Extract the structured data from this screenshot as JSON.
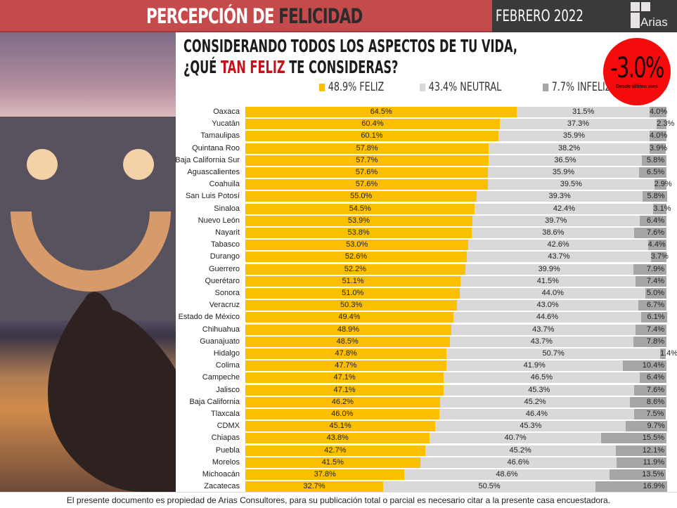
{
  "header": {
    "title_part1": "PERCEPCIÓN DE ",
    "title_part2": "FELICIDAD",
    "date": "FEBRERO 2022",
    "logo_text": "Arias"
  },
  "question": {
    "line1": "CONSIDERANDO TODOS LOS ASPECTOS DE TU VIDA,",
    "line2_pre": "¿QUÉ ",
    "line2_highlight": "TAN FELIZ",
    "line2_post": " TE CONSIDERAS?"
  },
  "badge": {
    "value": "-3.0%",
    "subtitle": "Desde último mes",
    "color": "#f50b0b"
  },
  "footer": "El presente documento es propiedad de Arias Consultores, para su publicación total o parcial es necesario citar a la presente casa encuestadora.",
  "chart_data": {
    "type": "bar",
    "stacked": true,
    "orientation": "horizontal",
    "xlim": [
      0,
      100
    ],
    "legend": [
      "48.9% FELIZ",
      "43.4% NEUTRAL",
      "7.7% INFELIZ"
    ],
    "legend_position": "top-right",
    "colors": [
      "#fcbf00",
      "#d9d9d9",
      "#a6a6a6"
    ],
    "categories": [
      "Oaxaca",
      "Yucatán",
      "Tamaulipas",
      "Quintana Roo",
      "Baja California Sur",
      "Aguascalientes",
      "Coahuila",
      "San Luis Potosí",
      "Sinaloa",
      "Nuevo León",
      "Nayarit",
      "Tabasco",
      "Durango",
      "Guerrero",
      "Querétaro",
      "Sonora",
      "Veracruz",
      "Estado de México",
      "Chihuahua",
      "Guanajuato",
      "Hidalgo",
      "Colima",
      "Campeche",
      "Jalisco",
      "Baja California",
      "Tlaxcala",
      "CDMX",
      "Chiapas",
      "Puebla",
      "Morelos",
      "Michoacán",
      "Zacatecas"
    ],
    "series": [
      {
        "name": "FELIZ",
        "values": [
          64.5,
          60.4,
          60.1,
          57.8,
          57.7,
          57.6,
          57.6,
          55.0,
          54.5,
          53.9,
          53.8,
          53.0,
          52.6,
          52.2,
          51.1,
          51.0,
          50.3,
          49.4,
          48.9,
          48.5,
          47.8,
          47.7,
          47.1,
          47.1,
          46.2,
          46.0,
          45.1,
          43.8,
          42.7,
          41.5,
          37.8,
          32.7
        ]
      },
      {
        "name": "NEUTRAL",
        "values": [
          31.5,
          37.3,
          35.9,
          38.2,
          36.5,
          35.9,
          39.5,
          39.3,
          42.4,
          39.7,
          38.6,
          42.6,
          43.7,
          39.9,
          41.5,
          44.0,
          43.0,
          44.6,
          43.7,
          43.7,
          50.7,
          41.9,
          46.5,
          45.3,
          45.2,
          46.4,
          45.3,
          40.7,
          45.2,
          46.6,
          48.6,
          50.5
        ]
      },
      {
        "name": "INFELIZ",
        "values": [
          4.0,
          2.3,
          4.0,
          3.9,
          5.8,
          6.5,
          2.9,
          5.8,
          3.1,
          6.4,
          7.6,
          4.4,
          3.7,
          7.9,
          7.4,
          5.0,
          6.7,
          6.1,
          7.4,
          7.8,
          1.4,
          10.4,
          6.4,
          7.6,
          8.6,
          7.5,
          9.7,
          15.5,
          12.1,
          11.9,
          13.5,
          16.9
        ]
      }
    ]
  }
}
